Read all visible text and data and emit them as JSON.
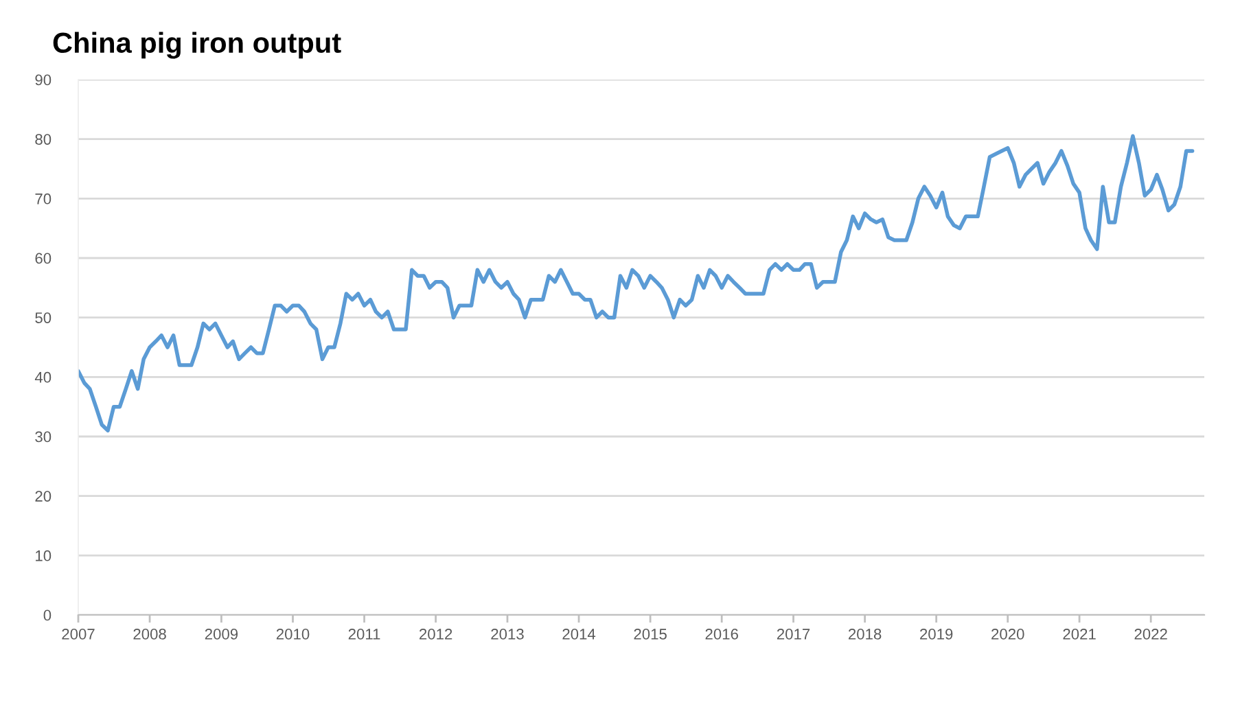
{
  "chart_data": {
    "type": "line",
    "title": "China pig iron output",
    "x": [
      "2007-01",
      "2007-02",
      "2007-03",
      "2007-04",
      "2007-05",
      "2007-06",
      "2007-07",
      "2007-08",
      "2007-09",
      "2007-10",
      "2007-11",
      "2007-12",
      "2008-01",
      "2008-02",
      "2008-03",
      "2008-04",
      "2008-05",
      "2008-06",
      "2008-07",
      "2008-08",
      "2008-09",
      "2008-10",
      "2008-11",
      "2008-12",
      "2009-01",
      "2009-02",
      "2009-03",
      "2009-04",
      "2009-05",
      "2009-06",
      "2009-07",
      "2009-08",
      "2009-09",
      "2009-10",
      "2009-11",
      "2009-12",
      "2010-01",
      "2010-02",
      "2010-03",
      "2010-04",
      "2010-05",
      "2010-06",
      "2010-07",
      "2010-08",
      "2010-09",
      "2010-10",
      "2010-11",
      "2010-12",
      "2011-01",
      "2011-02",
      "2011-03",
      "2011-04",
      "2011-05",
      "2011-06",
      "2011-07",
      "2011-08",
      "2011-09",
      "2011-10",
      "2011-11",
      "2011-12",
      "2012-01",
      "2012-02",
      "2012-03",
      "2012-04",
      "2012-05",
      "2012-06",
      "2012-07",
      "2012-08",
      "2012-09",
      "2012-10",
      "2012-11",
      "2012-12",
      "2013-01",
      "2013-02",
      "2013-03",
      "2013-04",
      "2013-05",
      "2013-06",
      "2013-07",
      "2013-08",
      "2013-09",
      "2013-10",
      "2013-11",
      "2013-12",
      "2014-01",
      "2014-02",
      "2014-03",
      "2014-04",
      "2014-05",
      "2014-06",
      "2014-07",
      "2014-08",
      "2014-09",
      "2014-10",
      "2014-11",
      "2014-12",
      "2015-01",
      "2015-02",
      "2015-03",
      "2015-04",
      "2015-05",
      "2015-06",
      "2015-07",
      "2015-08",
      "2015-09",
      "2015-10",
      "2015-11",
      "2015-12",
      "2016-01",
      "2016-02",
      "2016-03",
      "2016-04",
      "2016-05",
      "2016-06",
      "2016-07",
      "2016-08",
      "2016-09",
      "2016-10",
      "2016-11",
      "2016-12",
      "2017-01",
      "2017-02",
      "2017-03",
      "2017-04",
      "2017-05",
      "2017-06",
      "2017-07",
      "2017-08",
      "2017-09",
      "2017-10",
      "2017-11",
      "2017-12",
      "2018-01",
      "2018-02",
      "2018-03",
      "2018-04",
      "2018-05",
      "2018-06",
      "2018-07",
      "2018-08",
      "2018-09",
      "2018-10",
      "2018-11",
      "2018-12",
      "2019-01",
      "2019-02",
      "2019-03",
      "2019-04",
      "2019-05",
      "2019-06",
      "2019-07",
      "2019-08",
      "2019-09",
      "2019-10",
      "2019-11",
      "2019-12",
      "2020-01",
      "2020-02",
      "2020-03",
      "2020-04",
      "2020-05",
      "2020-06",
      "2020-07",
      "2020-08",
      "2020-09",
      "2020-10",
      "2020-11",
      "2020-12",
      "2021-01",
      "2021-02",
      "2021-03",
      "2021-04",
      "2021-05",
      "2021-06",
      "2021-07",
      "2021-08",
      "2021-09",
      "2021-10",
      "2021-11",
      "2021-12",
      "2022-01",
      "2022-02",
      "2022-03",
      "2022-04",
      "2022-05",
      "2022-06",
      "2022-07",
      "2022-08"
    ],
    "series": [
      {
        "color": "#5b9bd5",
        "values": [
          41,
          39,
          38,
          35,
          32,
          31,
          35,
          35,
          38,
          41,
          38,
          43,
          45,
          46,
          47,
          45,
          47,
          42,
          42,
          42,
          45,
          49,
          48,
          49,
          47,
          45,
          46,
          43,
          44,
          45,
          44,
          44,
          48,
          52,
          52,
          51,
          52,
          52,
          51,
          49,
          48,
          43,
          45,
          45,
          49,
          54,
          53,
          54,
          52,
          53,
          51,
          50,
          51,
          48,
          48,
          48,
          58,
          57,
          57,
          55,
          56,
          56,
          55,
          50,
          52,
          52,
          52,
          58,
          56,
          58,
          56,
          55,
          56,
          54,
          53,
          50,
          53,
          53,
          53,
          57,
          56,
          58,
          56,
          54,
          54,
          53,
          53,
          50,
          51,
          50,
          50,
          57,
          55,
          58,
          57,
          55,
          57,
          56,
          55,
          53,
          50,
          53,
          52,
          53,
          57,
          55,
          58,
          57,
          55,
          57,
          56,
          55,
          54,
          54,
          54,
          54,
          58,
          59,
          58,
          59,
          58,
          58,
          59,
          59,
          55,
          56,
          56,
          56,
          61,
          63,
          67,
          65,
          67.5,
          66.5,
          66,
          66.5,
          63.5,
          63,
          63,
          63,
          66,
          70,
          72,
          70.5,
          68.5,
          71,
          67,
          65.5,
          65,
          67,
          67,
          67,
          72,
          77,
          77.5,
          78,
          78.5,
          76,
          72,
          74,
          75,
          76,
          72.5,
          74.5,
          76,
          78,
          75.5,
          72.5,
          71,
          65,
          63,
          61.5,
          72,
          66,
          66,
          72,
          76,
          80.5,
          76,
          70.5,
          71.5,
          74,
          71.5,
          68,
          69,
          72,
          78,
          78
        ]
      }
    ],
    "xlim": [
      "2007-01",
      "2022-10"
    ],
    "xticks": [
      "2007",
      "2008",
      "2009",
      "2010",
      "2011",
      "2012",
      "2013",
      "2014",
      "2015",
      "2016",
      "2017",
      "2018",
      "2019",
      "2020",
      "2021",
      "2022"
    ],
    "ylim": [
      0,
      90
    ],
    "yticks": [
      0,
      10,
      20,
      30,
      40,
      50,
      60,
      70,
      80,
      90
    ],
    "grid": "y",
    "line_style": "solid"
  }
}
